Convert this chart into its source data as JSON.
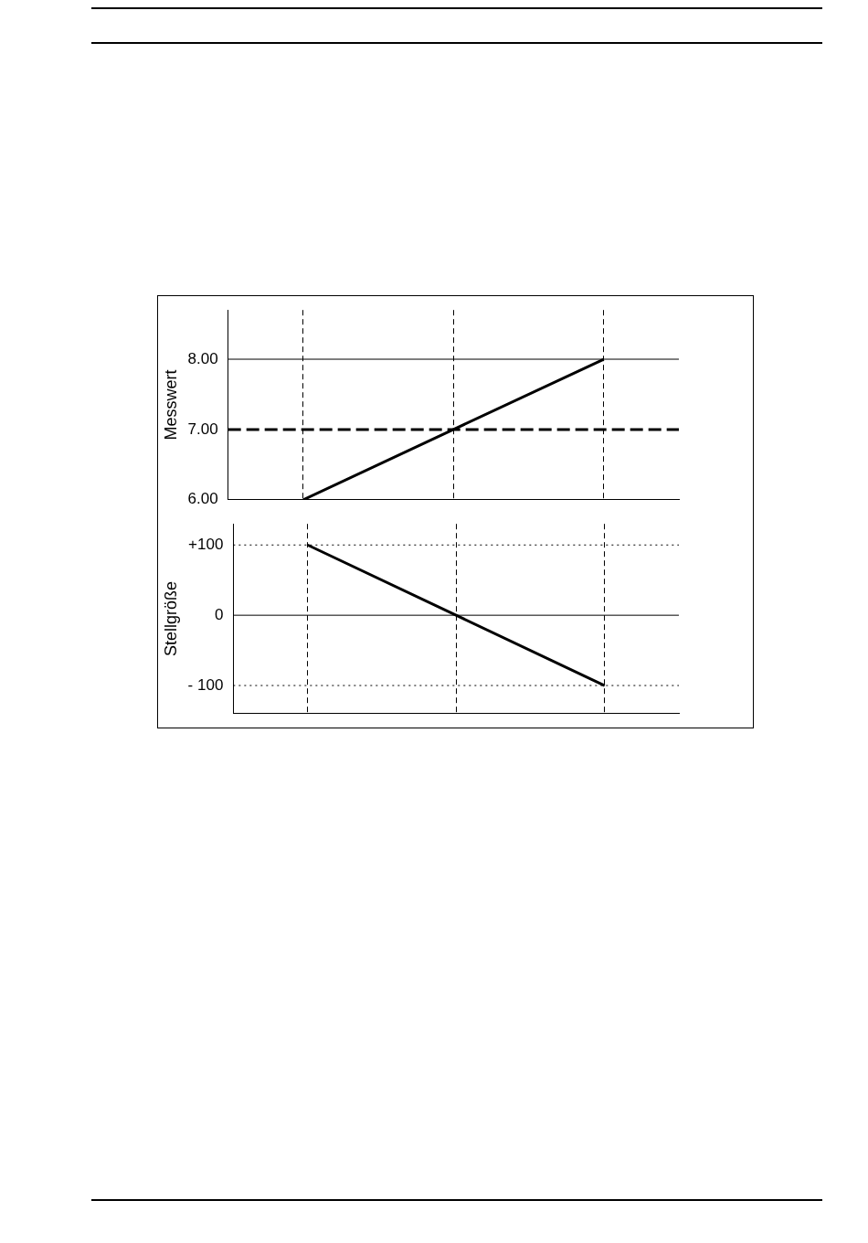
{
  "chart_data": [
    {
      "type": "line",
      "ylabel": "Messwert",
      "categories": [
        null,
        null,
        null
      ],
      "values": [
        6,
        7,
        8
      ],
      "color": "#000000",
      "ylim": [
        6,
        8.7
      ],
      "yticks": [
        {
          "value": 6,
          "label": "6.00"
        },
        {
          "value": 7,
          "label": "7.00"
        },
        {
          "value": 8,
          "label": "8.00"
        }
      ],
      "grid": "x",
      "tick_labels": "y",
      "marker": "none",
      "line_style": "solid",
      "ref_lines": [
        {
          "axis": "y",
          "value": 8,
          "line_style": "solid",
          "color": "#000000"
        },
        {
          "axis": "y",
          "value": 7,
          "line_style": "dashed",
          "color": "#000000"
        }
      ]
    },
    {
      "type": "line",
      "ylabel": "Stellgröße",
      "categories": [
        null,
        null,
        null
      ],
      "values": [
        100,
        0,
        -100
      ],
      "color": "#000000",
      "ylim": [
        -140,
        130
      ],
      "yticks": [
        {
          "value": -100,
          "label": "- 100"
        },
        {
          "value": 0,
          "label": "0"
        },
        {
          "value": 100,
          "label": "+100"
        }
      ],
      "grid": "x",
      "tick_labels": "y",
      "marker": "none",
      "line_style": "solid",
      "ref_lines": [
        {
          "axis": "y",
          "value": 100,
          "line_style": "dotted",
          "color": "#000000"
        },
        {
          "axis": "y",
          "value": 0,
          "line_style": "solid",
          "color": "#000000"
        },
        {
          "axis": "y",
          "value": -100,
          "line_style": "dotted",
          "color": "#000000"
        }
      ]
    }
  ]
}
